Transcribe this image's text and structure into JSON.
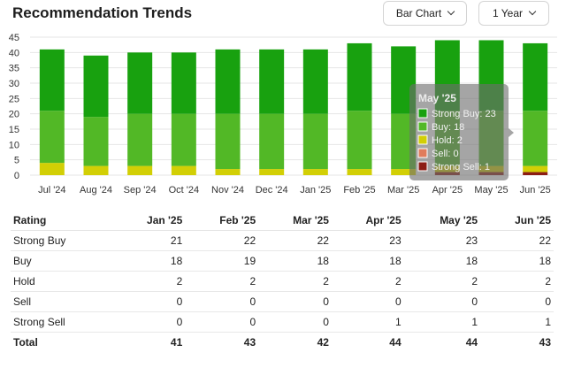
{
  "header": {
    "title": "Recommendation Trends",
    "chart_type_select": "Bar Chart",
    "period_select": "1 Year"
  },
  "colors": {
    "strong_buy": "#18a10f",
    "buy": "#52b826",
    "hold": "#d2cf05",
    "sell": "#e07c5c",
    "strong_sell": "#8c1d14"
  },
  "chart_data": {
    "type": "bar",
    "stacked": true,
    "categories": [
      "Jul '24",
      "Aug '24",
      "Sep '24",
      "Oct '24",
      "Nov '24",
      "Dec '24",
      "Jan '25",
      "Feb '25",
      "Mar '25",
      "Apr '25",
      "May '25",
      "Jun '25"
    ],
    "series": [
      {
        "name": "Strong Sell",
        "values": [
          0,
          0,
          0,
          0,
          0,
          0,
          0,
          0,
          0,
          1,
          1,
          1
        ]
      },
      {
        "name": "Sell",
        "values": [
          0,
          0,
          0,
          0,
          0,
          0,
          0,
          0,
          0,
          0,
          0,
          0
        ]
      },
      {
        "name": "Hold",
        "values": [
          4,
          3,
          3,
          3,
          2,
          2,
          2,
          2,
          2,
          2,
          2,
          2
        ]
      },
      {
        "name": "Buy",
        "values": [
          17,
          16,
          17,
          17,
          18,
          18,
          18,
          19,
          18,
          18,
          18,
          18
        ]
      },
      {
        "name": "Strong Buy",
        "values": [
          20,
          20,
          20,
          20,
          21,
          21,
          21,
          22,
          22,
          23,
          23,
          22
        ]
      }
    ],
    "ylim": [
      0,
      45
    ],
    "yticks": [
      0,
      5,
      10,
      15,
      20,
      25,
      30,
      35,
      40,
      45
    ],
    "grid": true,
    "tooltip": {
      "title": "May '25",
      "lines": [
        "Strong Buy: 23",
        "Buy: 18",
        "Hold: 2",
        "Sell: 0",
        "Strong Sell: 1"
      ]
    }
  },
  "table": {
    "header": [
      "Rating",
      "Jan '25",
      "Feb '25",
      "Mar '25",
      "Apr '25",
      "May '25",
      "Jun '25"
    ],
    "rows": [
      [
        "Strong Buy",
        "21",
        "22",
        "22",
        "23",
        "23",
        "22"
      ],
      [
        "Buy",
        "18",
        "19",
        "18",
        "18",
        "18",
        "18"
      ],
      [
        "Hold",
        "2",
        "2",
        "2",
        "2",
        "2",
        "2"
      ],
      [
        "Sell",
        "0",
        "0",
        "0",
        "0",
        "0",
        "0"
      ],
      [
        "Strong Sell",
        "0",
        "0",
        "0",
        "1",
        "1",
        "1"
      ]
    ],
    "total": [
      "Total",
      "41",
      "43",
      "42",
      "44",
      "44",
      "43"
    ]
  }
}
